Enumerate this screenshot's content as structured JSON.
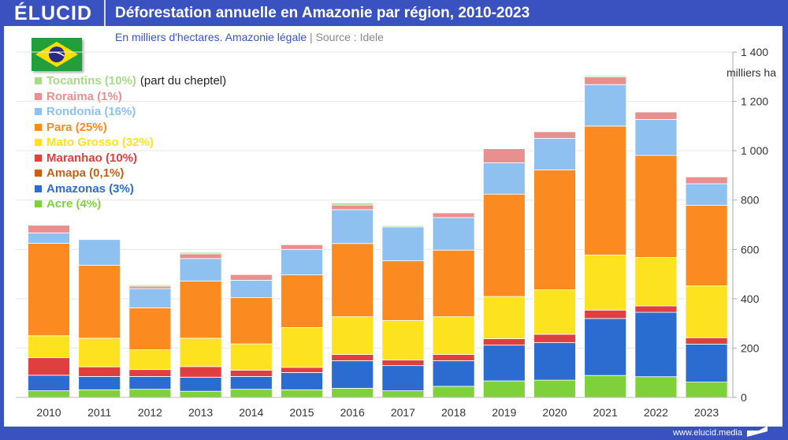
{
  "header": {
    "logo": "ÉLUCID",
    "title": "Déforestation annuelle en Amazonie par région, 2010-2023"
  },
  "subtitle": {
    "text": "En milliers d'hectares. Amazonie légale",
    "separator": "|",
    "source": "Source : Idele"
  },
  "footer": {
    "url": "www.elucid.media"
  },
  "legend_note": "(part du cheptel)",
  "chart_data": {
    "type": "bar",
    "stacked": true,
    "title": "Déforestation annuelle en Amazonie par région, 2010-2023",
    "ylabel": "milliers ha",
    "ylim": [
      0,
      1400
    ],
    "yticks": [
      "0",
      "200",
      "400",
      "600",
      "800",
      "1 000",
      "1 200",
      "1 400"
    ],
    "ytick_values": [
      0,
      200,
      400,
      600,
      800,
      1000,
      1200,
      1400
    ],
    "grid": true,
    "legend_placement": "top-left",
    "categories": [
      "2010",
      "2011",
      "2012",
      "2013",
      "2014",
      "2015",
      "2016",
      "2017",
      "2018",
      "2019",
      "2020",
      "2021",
      "2022",
      "2023"
    ],
    "series": [
      {
        "name": "Acre (4%)",
        "color": "#7fd13b",
        "values": [
          27,
          31,
          33,
          25,
          33,
          31,
          37,
          27,
          45,
          67,
          70,
          89,
          84,
          62
        ]
      },
      {
        "name": "Amazonas (3%)",
        "color": "#2b6cd0",
        "values": [
          63,
          54,
          52,
          57,
          52,
          70,
          112,
          102,
          104,
          145,
          152,
          231,
          261,
          154
        ]
      },
      {
        "name": "Amapa (0,1%)",
        "color": "#c8600e",
        "values": [
          0,
          0,
          0,
          0,
          0,
          0,
          0,
          0,
          0,
          0,
          0,
          0,
          0,
          0
        ]
      },
      {
        "name": "Maranhao (10%)",
        "color": "#df3f3f",
        "values": [
          71,
          39,
          28,
          43,
          25,
          21,
          25,
          23,
          25,
          26,
          34,
          34,
          26,
          26
        ]
      },
      {
        "name": "Mato Grosso (32%)",
        "color": "#fde21f",
        "values": [
          89,
          116,
          80,
          115,
          107,
          161,
          153,
          160,
          153,
          171,
          180,
          223,
          196,
          210
        ]
      },
      {
        "name": "Para (25%)",
        "color": "#fb8b20",
        "values": [
          375,
          296,
          170,
          232,
          187,
          214,
          297,
          242,
          270,
          415,
          486,
          523,
          414,
          327
        ]
      },
      {
        "name": "Rondonia (16%)",
        "color": "#8ec1ef",
        "values": [
          42,
          104,
          78,
          91,
          71,
          103,
          137,
          137,
          132,
          127,
          128,
          168,
          146,
          87
        ]
      },
      {
        "name": "Roraima (1%)",
        "color": "#ea8f8f",
        "values": [
          31,
          0,
          10,
          19,
          23,
          19,
          19,
          0,
          19,
          57,
          27,
          31,
          30,
          28
        ]
      },
      {
        "name": "Tocantins (10%)",
        "color": "#a6dc86",
        "values": [
          2,
          0,
          5,
          6,
          0,
          0,
          8,
          5,
          0,
          0,
          0,
          5,
          0,
          0
        ]
      }
    ]
  }
}
